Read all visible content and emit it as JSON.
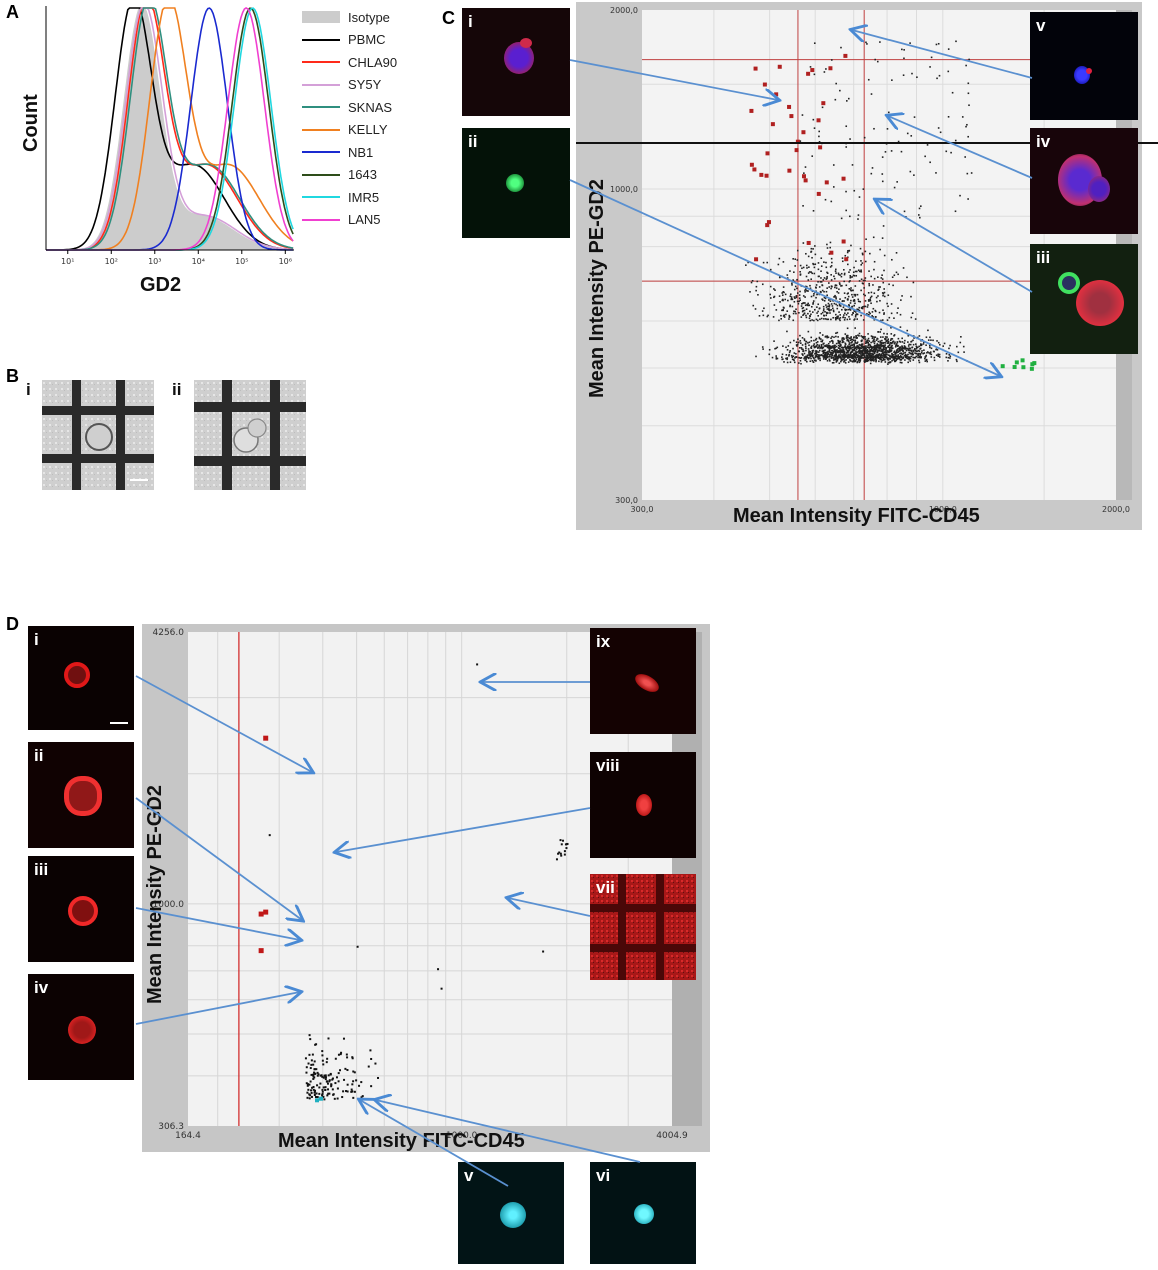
{
  "panels": {
    "A": {
      "letter": "A",
      "ylabel": "Count",
      "xlabel": "GD2"
    },
    "B": {
      "letter": "B",
      "sub": [
        "i",
        "ii"
      ]
    },
    "C": {
      "letter": "C",
      "xlabel": "Mean Intensity FITC-CD45",
      "ylabel": "Mean Intensity PE-GD2",
      "sub": [
        "i",
        "ii",
        "iii",
        "iv",
        "v"
      ]
    },
    "D": {
      "letter": "D",
      "xlabel": "Mean Intensity FITC-CD45",
      "ylabel": "Mean Intensity PE-GD2",
      "sub": [
        "i",
        "ii",
        "iii",
        "iv",
        "v",
        "vi",
        "vii",
        "viii",
        "ix"
      ]
    }
  },
  "chart_data": [
    {
      "type": "line",
      "panel": "A",
      "xlabel": "GD2",
      "ylabel": "Count",
      "xscale": "log",
      "xticks": [
        "10¹",
        "10²",
        "10³",
        "10⁴",
        "10⁵",
        "10⁶"
      ],
      "legend_placement": "right",
      "series": [
        {
          "name": "Isotype",
          "color": "#cccccc",
          "filled": true,
          "peak_log10": 2.7
        },
        {
          "name": "PBMC",
          "color": "#000000",
          "peak_log10": 2.5
        },
        {
          "name": "CHLA90",
          "color": "#ff2a1a",
          "peak_log10": 2.8
        },
        {
          "name": "SY5Y",
          "color": "#d4a0d8",
          "peak_log10": 2.75
        },
        {
          "name": "SKNAS",
          "color": "#2f8f7f",
          "peak_log10": 2.85
        },
        {
          "name": "KELLY",
          "color": "#f08020",
          "peak_log10": 3.3
        },
        {
          "name": "NB1",
          "color": "#1a2ad0",
          "peak_log10": 4.25
        },
        {
          "name": "1643",
          "color": "#2e4d1a",
          "peak_log10": 5.2
        },
        {
          "name": "IMR5",
          "color": "#20d8e0",
          "peak_log10": 5.25
        },
        {
          "name": "LAN5",
          "color": "#f040d0",
          "peak_log10": 5.1
        }
      ]
    },
    {
      "type": "scatter",
      "panel": "C",
      "xlabel": "Mean Intensity FITC-CD45",
      "ylabel": "Mean Intensity PE-GD2",
      "xticks": [
        "300,0",
        "1000,0",
        "2000,0"
      ],
      "yticks": [
        "300,0",
        "1000,0",
        "2000,0"
      ],
      "xlim": [
        300,
        2000
      ],
      "ylim": [
        300,
        2000
      ],
      "xscale": "log",
      "yscale": "log",
      "colors": {
        "gd2_positive": "#b02020",
        "cd45_positive": "#20b040",
        "other": "#222222"
      }
    },
    {
      "type": "scatter",
      "panel": "D",
      "xlabel": "Mean Intensity FITC-CD45",
      "ylabel": "Mean Intensity PE-GD2",
      "xticks": [
        "164.4",
        "1000.0",
        "4004.9"
      ],
      "yticks": [
        "306.3",
        "1000.0",
        "4256.0"
      ],
      "xlim": [
        164.4,
        4004.9
      ],
      "ylim": [
        306.3,
        4256.0
      ],
      "xscale": "log",
      "yscale": "log",
      "colors": {
        "gd2_positive": "#c01818",
        "cd45_positive": "#20b0c0",
        "other": "#111111"
      }
    }
  ]
}
